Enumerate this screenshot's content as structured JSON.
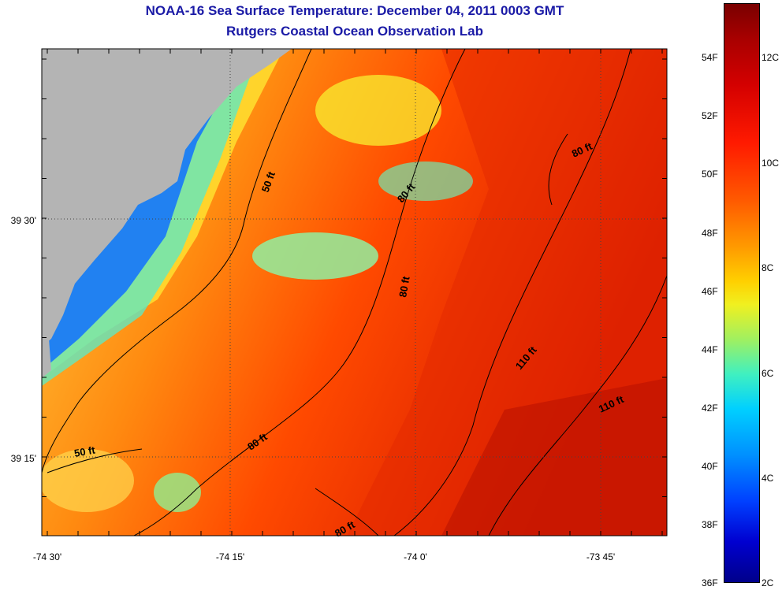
{
  "title": "NOAA-16 Sea Surface Temperature:  December 04, 2011 0003 GMT",
  "subtitle": "Rutgers Coastal Ocean Observation Lab",
  "x_ticks": [
    "-74 30'",
    "-74 15'",
    "-74 0'",
    "-73 45'"
  ],
  "y_ticks": [
    "39 30'",
    "39 15'"
  ],
  "contours": [
    "50 ft",
    "50 ft",
    "80 ft",
    "80 ft",
    "80 ft",
    "80 ft",
    "80 ft",
    "110 ft",
    "110 ft"
  ],
  "colorbar": {
    "fahrenheit": [
      "54F",
      "52F",
      "50F",
      "48F",
      "46F",
      "44F",
      "42F",
      "40F",
      "38F",
      "36F"
    ],
    "celsius": [
      "12C",
      "10C",
      "8C",
      "6C",
      "4C",
      "2C"
    ]
  },
  "colors": {
    "land": "#b4b4b4",
    "title": "#1a1aa6"
  }
}
